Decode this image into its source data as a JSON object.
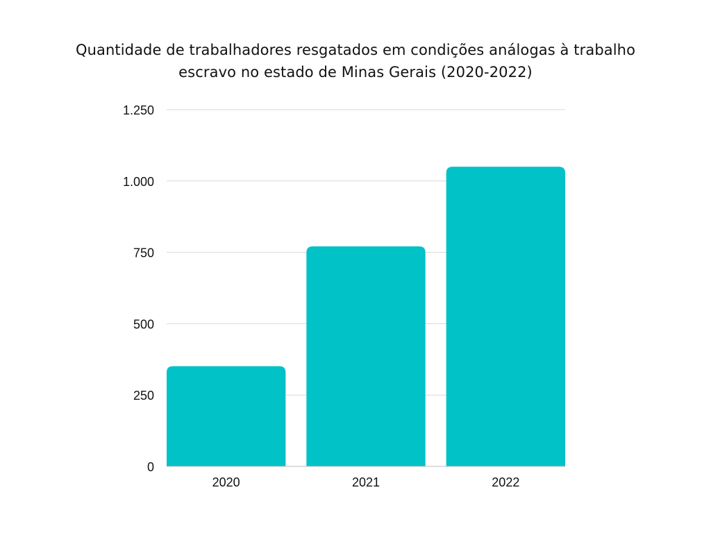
{
  "chart_data": {
    "type": "bar",
    "title_lines": [
      "Quantidade de trabalhadores resgatados em condições análogas à trabalho",
      "escravo no estado de Minas Gerais (2020-2022)"
    ],
    "categories": [
      "2020",
      "2021",
      "2022"
    ],
    "values": [
      351,
      771,
      1050
    ],
    "ylim": [
      0,
      1250
    ],
    "yticks": [
      0,
      250,
      500,
      750,
      1000,
      1250
    ],
    "ytick_labels": [
      "0",
      "250",
      "500",
      "750",
      "1.000",
      "1.250"
    ],
    "xlabel": "",
    "ylabel": "",
    "grid": true,
    "bar_color": "#00C2C7",
    "grid_color": "#D9D9D9"
  }
}
